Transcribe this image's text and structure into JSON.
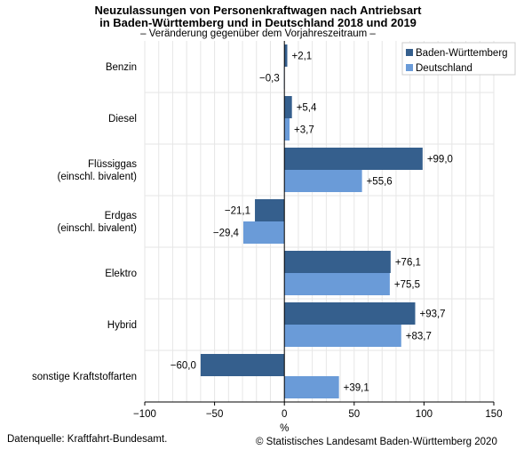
{
  "title_line1": "Neuzulassungen von Personenkraftwagen nach Antriebsart",
  "title_line2": "in Baden-Württemberg und in Deutschland 2018 und 2019",
  "subtitle": "– Veränderung gegenüber dem Vorjahreszeitraum –",
  "source": "Datenquelle: Kraftfahrt-Bundesamt.",
  "copyright": "© Statistisches Landesamt Baden-Württemberg 2020",
  "colors": {
    "bw": "#355f8d",
    "de": "#6a9bd8",
    "zero_line": "#000000",
    "grid": "#e6e6e6"
  },
  "chart_data": {
    "type": "bar",
    "orientation": "horizontal",
    "categories": [
      [
        "Benzin"
      ],
      [
        "Diesel"
      ],
      [
        "Flüssiggas",
        "(einschl. bivalent)"
      ],
      [
        "Erdgas",
        "(einschl. bivalent)"
      ],
      [
        "Elektro"
      ],
      [
        "Hybrid"
      ],
      [
        "sonstige Kraftstoffarten"
      ]
    ],
    "series": [
      {
        "name": "Baden-Württemberg",
        "values": [
          2.1,
          5.4,
          99.0,
          -21.1,
          76.1,
          93.7,
          -60.0
        ],
        "labels": [
          "+2,1",
          "+5,4",
          "+99,0",
          "−21,1",
          "+76,1",
          "+93,7",
          "−60,0"
        ]
      },
      {
        "name": "Deutschland",
        "values": [
          -0.3,
          3.7,
          55.6,
          -29.4,
          75.5,
          83.7,
          39.1
        ],
        "labels": [
          "−0,3",
          "+3,7",
          "+55,6",
          "−29,4",
          "+75,5",
          "+83,7",
          "+39,1"
        ]
      }
    ],
    "xlim": [
      -100,
      150
    ],
    "xticks": [
      -100,
      -50,
      0,
      50,
      100,
      150
    ],
    "xtick_labels": [
      "−100",
      "−50",
      "0",
      "50",
      "100",
      "150"
    ],
    "xlabel": "%",
    "legend_position": "top-right",
    "grid": "vertical"
  }
}
